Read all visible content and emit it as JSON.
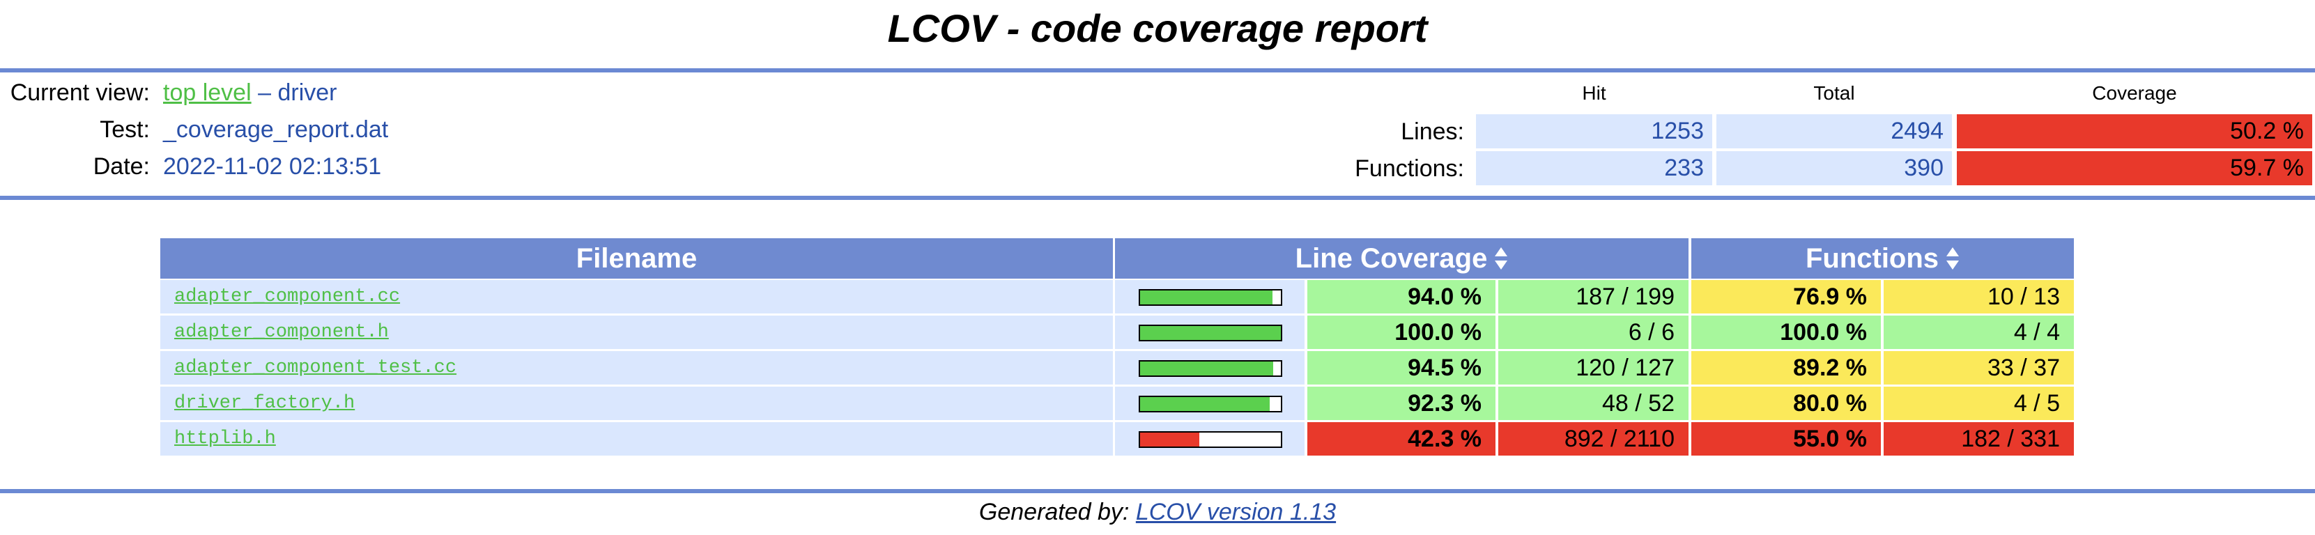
{
  "header": {
    "title": "LCOV - code coverage report",
    "current_view_label": "Current view:",
    "current_view_link": "top level",
    "current_view_separator": "–",
    "current_view_dir": "driver",
    "test_label": "Test:",
    "test_value": "_coverage_report.dat",
    "date_label": "Date:",
    "date_value": "2022-11-02 02:13:51",
    "columns": [
      "Hit",
      "Total",
      "Coverage"
    ],
    "summary": [
      {
        "label": "Lines:",
        "hit": "1253",
        "total": "2494",
        "coverage": {
          "value": 50.2,
          "label": "50.2 %"
        }
      },
      {
        "label": "Functions:",
        "hit": "233",
        "total": "390",
        "coverage": {
          "value": 59.7,
          "label": "59.7 %"
        }
      }
    ]
  },
  "table": {
    "columns": [
      "Filename",
      "Line Coverage",
      "Functions"
    ],
    "rows": [
      {
        "file": "adapter_component.cc",
        "line_coverage": {
          "value": 94.0,
          "label": "94.0 %"
        },
        "lines": "187 / 199",
        "function_coverage": {
          "value": 76.9,
          "label": "76.9 %"
        },
        "functions": "10 / 13"
      },
      {
        "file": "adapter_component.h",
        "line_coverage": {
          "value": 100.0,
          "label": "100.0 %"
        },
        "lines": "6 / 6",
        "function_coverage": {
          "value": 100.0,
          "label": "100.0 %"
        },
        "functions": "4 / 4"
      },
      {
        "file": "adapter_component_test.cc",
        "line_coverage": {
          "value": 94.5,
          "label": "94.5 %"
        },
        "lines": "120 / 127",
        "function_coverage": {
          "value": 89.2,
          "label": "89.2 %"
        },
        "functions": "33 / 37"
      },
      {
        "file": "driver_factory.h",
        "line_coverage": {
          "value": 92.3,
          "label": "92.3 %"
        },
        "lines": "48 / 52",
        "function_coverage": {
          "value": 80.0,
          "label": "80.0 %"
        },
        "functions": "4 / 5"
      },
      {
        "file": "httplib.h",
        "line_coverage": {
          "value": 42.3,
          "label": "42.3 %"
        },
        "lines": "892 / 2110",
        "function_coverage": {
          "value": 55.0,
          "label": "55.0 %"
        },
        "functions": "182 / 331"
      }
    ]
  },
  "footer": {
    "label": "Generated by:",
    "link": "LCOV version 1.13"
  }
}
